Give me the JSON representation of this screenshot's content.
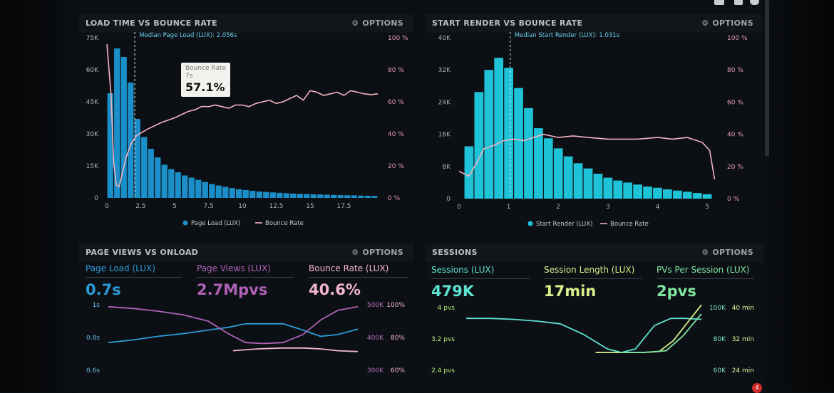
{
  "colors": {
    "bar_blue": "#1a8fc9",
    "bar_cyan": "#1ec3d8",
    "bounce_pink": "#f4b3c0",
    "line_blue": "#2a9bd8",
    "line_purple": "#b061b8",
    "line_pink": "#f3b6cd",
    "sessions_cyan": "#5de2d3",
    "session_length_green": "#d7f08a",
    "pvs_green": "#7fe8a0",
    "left_axis_green": "#b8ec78",
    "right_axis_cyan": "#7ce0c8",
    "right_axis_yellow": "#e4f79c"
  },
  "panels": {
    "load_time": {
      "title": "LOAD TIME VS BOUNCE RATE",
      "options_label": "OPTIONS",
      "options_icon": "gear-icon"
    },
    "start_render": {
      "title": "START RENDER VS BOUNCE RATE",
      "options_label": "OPTIONS",
      "options_icon": "gear-icon"
    },
    "page_views": {
      "title": "PAGE VIEWS VS ONLOAD",
      "options_label": "OPTIONS",
      "options_icon": "gear-icon"
    },
    "sessions": {
      "title": "SESSIONS",
      "options_label": "OPTIONS",
      "options_icon": "gear-icon"
    }
  },
  "tooltip": {
    "label": "Bounce Rate",
    "sublabel": "7s",
    "value": "57.1%"
  },
  "metrics": {
    "page_load": {
      "label": "Page Load (LUX)",
      "value": "0.7s"
    },
    "page_views": {
      "label": "Page Views (LUX)",
      "value": "2.7Mpvs"
    },
    "bounce_rate": {
      "label": "Bounce Rate (LUX)",
      "value": "40.6%"
    },
    "sessions": {
      "label": "Sessions (LUX)",
      "value": "479K"
    },
    "session_length": {
      "label": "Session Length (LUX)",
      "value": "17min"
    },
    "pvs_per_session": {
      "label": "PVs Per Session (LUX)",
      "value": "2pvs"
    }
  },
  "notification_count": "4",
  "chart_data": [
    {
      "type": "bar",
      "name": "load-time-vs-bounce-rate",
      "title": "LOAD TIME VS BOUNCE RATE",
      "x_ticks": [
        "0",
        "2.5",
        "5",
        "7.5",
        "10",
        "12.5",
        "15",
        "17.5"
      ],
      "x_tick_values": [
        0,
        2.5,
        5,
        7.5,
        10,
        12.5,
        15,
        17.5
      ],
      "xlim": [
        0,
        20
      ],
      "y_ticks": [
        "0",
        "15K",
        "30K",
        "45K",
        "60K",
        "75K"
      ],
      "ylim": [
        0,
        75000
      ],
      "y2_ticks": [
        "0 %",
        "20 %",
        "40 %",
        "60 %",
        "80 %",
        "100 %"
      ],
      "y2lim": [
        0,
        100
      ],
      "bin_width": 0.5,
      "series": [
        {
          "name": "Page Load (LUX)",
          "x": [
            0.25,
            0.75,
            1.25,
            1.75,
            2.25,
            2.75,
            3.25,
            3.75,
            4.25,
            4.75,
            5.25,
            5.75,
            6.25,
            6.75,
            7.25,
            7.75,
            8.25,
            8.75,
            9.25,
            9.75,
            10.25,
            10.75,
            11.25,
            11.75,
            12.25,
            12.75,
            13.25,
            13.75,
            14.25,
            14.75,
            15.25,
            15.75,
            16.25,
            16.75,
            17.25,
            17.75,
            18.25,
            18.75,
            19.25,
            19.75
          ],
          "values": [
            49000,
            70000,
            66000,
            54000,
            37000,
            28500,
            23000,
            19000,
            15500,
            13500,
            12000,
            10500,
            9500,
            8500,
            7500,
            6500,
            5800,
            5200,
            4600,
            4100,
            3700,
            3300,
            3000,
            2800,
            2600,
            2400,
            2200,
            2000,
            1900,
            1800,
            1700,
            1600,
            1500,
            1400,
            1300,
            1250,
            1200,
            1100,
            1000,
            900
          ]
        },
        {
          "name": "Bounce Rate",
          "x": [
            0,
            0.3,
            0.5,
            0.7,
            0.9,
            1.1,
            1.4,
            1.8,
            2.2,
            3,
            4,
            5,
            5.5,
            6,
            6.5,
            7,
            7.5,
            8,
            8.5,
            9,
            9.5,
            10,
            10.5,
            11,
            11.5,
            12,
            12.5,
            13,
            13.5,
            14,
            14.5,
            15,
            15.5,
            16,
            16.5,
            17,
            17.5,
            18,
            18.5,
            19,
            19.5,
            20
          ],
          "values": [
            96,
            65,
            22,
            8,
            7,
            14,
            25,
            34,
            39,
            43,
            47,
            50,
            52,
            54,
            55,
            57.1,
            57,
            58,
            57,
            56,
            58,
            58,
            57,
            59,
            60,
            61,
            59,
            60,
            62,
            64,
            61,
            67,
            66,
            64,
            65,
            66,
            64,
            67,
            66,
            65,
            64.5,
            65
          ]
        }
      ],
      "annotation": "Median Page Load (LUX): 2.056s",
      "median_x": 2.056,
      "legend": [
        "Page Load (LUX)",
        "Bounce Rate"
      ],
      "legend_position": "bottom"
    },
    {
      "type": "bar",
      "name": "start-render-vs-bounce-rate",
      "title": "START RENDER VS BOUNCE RATE",
      "x_ticks": [
        "0",
        "1",
        "2",
        "3",
        "4",
        "5"
      ],
      "x_tick_values": [
        0,
        1,
        2,
        3,
        4,
        5
      ],
      "xlim": [
        0,
        5.2
      ],
      "y_ticks": [
        "0",
        "8K",
        "16K",
        "24K",
        "32K",
        "40K"
      ],
      "ylim": [
        0,
        40000
      ],
      "y2_ticks": [
        "0 %",
        "20 %",
        "40 %",
        "60 %",
        "80 %",
        "100 %"
      ],
      "y2lim": [
        0,
        100
      ],
      "bin_width": 0.2,
      "series": [
        {
          "name": "Start Render (LUX)",
          "x": [
            0.2,
            0.4,
            0.6,
            0.8,
            1.0,
            1.2,
            1.4,
            1.6,
            1.8,
            2.0,
            2.2,
            2.4,
            2.6,
            2.8,
            3.0,
            3.2,
            3.4,
            3.6,
            3.8,
            4.0,
            4.2,
            4.4,
            4.6,
            4.8,
            5.0
          ],
          "values": [
            13000,
            26500,
            32000,
            35000,
            32500,
            27500,
            22500,
            17500,
            15000,
            12500,
            10500,
            8800,
            7500,
            6200,
            5200,
            4500,
            4000,
            3500,
            3000,
            2700,
            2300,
            2000,
            1700,
            1400,
            1100
          ]
        },
        {
          "name": "Bounce Rate",
          "x": [
            0,
            0.2,
            0.35,
            0.5,
            0.7,
            0.9,
            1.1,
            1.3,
            1.5,
            1.7,
            2,
            2.3,
            2.6,
            3,
            3.3,
            3.6,
            4,
            4.3,
            4.6,
            4.9,
            5.05,
            5.15
          ],
          "values": [
            17,
            14,
            22,
            31,
            33,
            36,
            37,
            36,
            38,
            40,
            38,
            39,
            38,
            37,
            37,
            37,
            38,
            37,
            38,
            35,
            30,
            12
          ]
        }
      ],
      "annotation": "Median Start Render (LUX): 1.031s",
      "median_x": 1.031,
      "legend": [
        "Start Render (LUX)",
        "Bounce Rate"
      ],
      "legend_position": "bottom"
    },
    {
      "type": "line",
      "name": "page-views-vs-onload",
      "left_ticks": [
        "1s",
        "0.8s",
        "0.6s"
      ],
      "right_ticks_views": [
        "500K",
        "400K",
        "300K"
      ],
      "right_ticks_rate": [
        "100%",
        "80%",
        "60%"
      ],
      "series": [
        {
          "name": "Page Load (LUX)",
          "x": [
            0,
            0.1,
            0.2,
            0.3,
            0.4,
            0.48,
            0.55,
            0.62,
            0.7,
            0.78,
            0.85,
            0.92,
            1
          ],
          "values": [
            0.53,
            0.56,
            0.6,
            0.63,
            0.67,
            0.7,
            0.74,
            0.74,
            0.74,
            0.67,
            0.6,
            0.62,
            0.68
          ]
        },
        {
          "name": "Page Views (LUX)",
          "x": [
            0,
            0.1,
            0.2,
            0.3,
            0.4,
            0.48,
            0.55,
            0.62,
            0.7,
            0.78,
            0.85,
            0.92,
            1
          ],
          "values": [
            0.93,
            0.91,
            0.88,
            0.84,
            0.77,
            0.63,
            0.53,
            0.52,
            0.53,
            0.62,
            0.78,
            0.89,
            0.93
          ]
        },
        {
          "name": "Bounce Rate (LUX)",
          "x": [
            0.5,
            0.6,
            0.7,
            0.78,
            0.85,
            0.92,
            1
          ],
          "values": [
            0.44,
            0.46,
            0.47,
            0.47,
            0.46,
            0.44,
            0.43
          ]
        }
      ]
    },
    {
      "type": "line",
      "name": "sessions",
      "left_ticks": [
        "4 pvs",
        "3.2 pvs",
        "2.4 pvs"
      ],
      "right_ticks_sessions": [
        "100K",
        "80K",
        "60K"
      ],
      "right_ticks_length": [
        "40 min",
        "32 min",
        "24 min"
      ],
      "series": [
        {
          "name": "Sessions (LUX)",
          "x": [
            0,
            0.1,
            0.2,
            0.3,
            0.4,
            0.5,
            0.6,
            0.66,
            0.72,
            0.8,
            0.87,
            0.93,
            1
          ],
          "values": [
            0.8,
            0.8,
            0.79,
            0.77,
            0.74,
            0.62,
            0.46,
            0.42,
            0.46,
            0.72,
            0.8,
            0.8,
            0.79
          ]
        },
        {
          "name": "Session Length (LUX)",
          "x": [
            0.55,
            0.65,
            0.75,
            0.82,
            0.88,
            0.94,
            1
          ],
          "values": [
            0.42,
            0.42,
            0.42,
            0.43,
            0.55,
            0.75,
            0.95
          ]
        },
        {
          "name": "PVs Per Session (LUX)",
          "x": [
            0.65,
            0.75,
            0.85,
            0.92,
            1
          ],
          "values": [
            0.42,
            0.42,
            0.44,
            0.6,
            0.85
          ]
        }
      ]
    }
  ]
}
